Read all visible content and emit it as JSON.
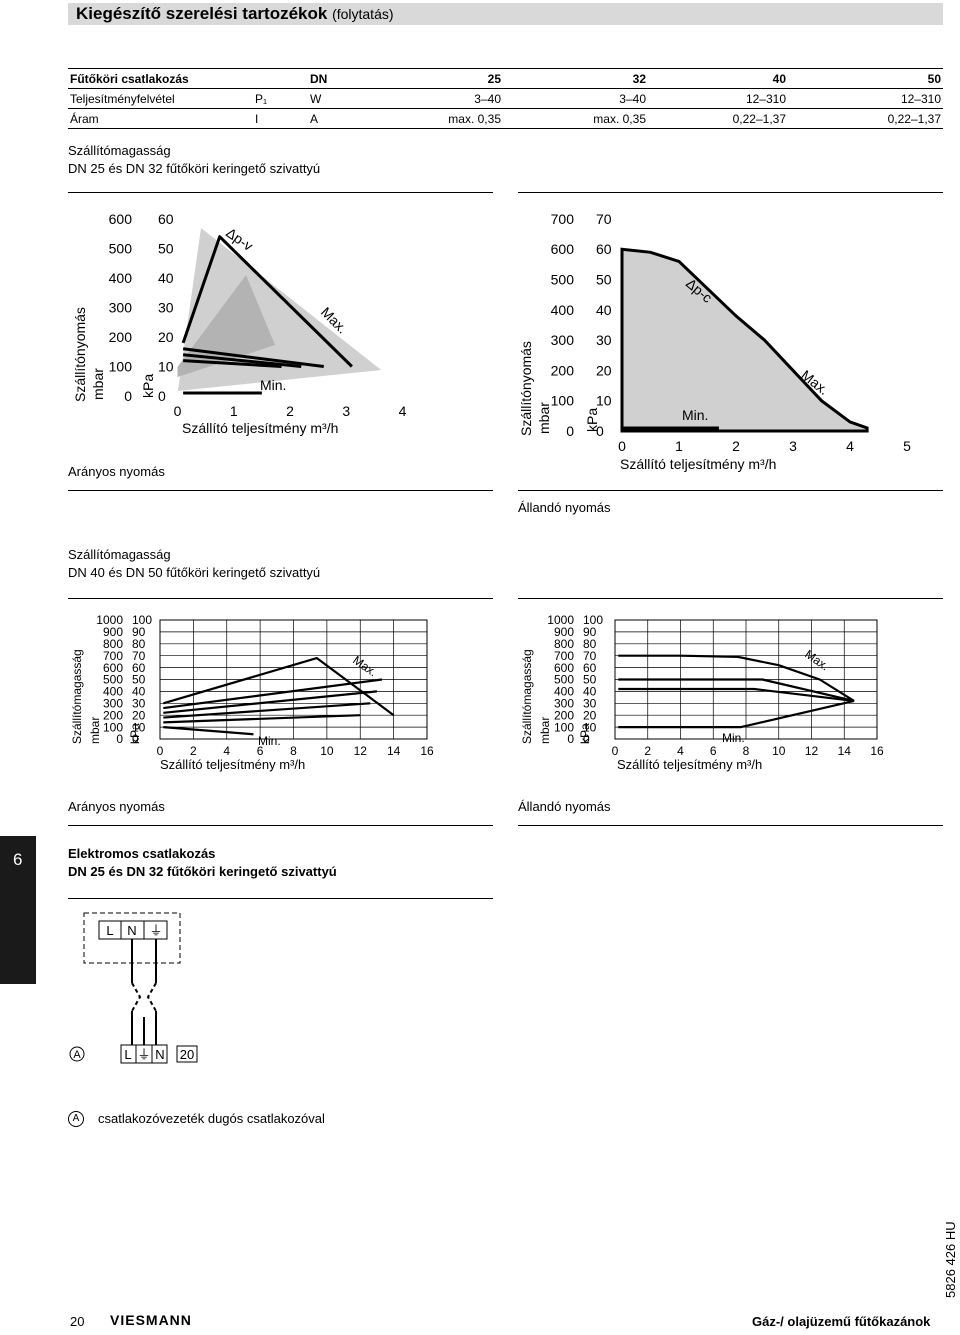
{
  "header": {
    "title": "Kiegészítő szerelési tartozékok",
    "suffix": "(folytatás)"
  },
  "spec_table": {
    "rows": [
      [
        "Fűtőköri csatlakozás",
        "",
        "DN",
        "25",
        "32",
        "40",
        "50"
      ],
      [
        "Teljesítményfelvétel",
        "P₁",
        "W",
        "3–40",
        "3–40",
        "12–310",
        "12–310"
      ],
      [
        "Áram",
        "I",
        "A",
        "max. 0,35",
        "max. 0,35",
        "0,22–1,37",
        "0,22–1,37"
      ]
    ]
  },
  "section1": {
    "title": "Szállítómagasság",
    "subtitle": "DN 25 és DN 32 fűtőköri keringető szivattyú"
  },
  "section2": {
    "title": "Szállítómagasság",
    "subtitle": "DN 40 és DN 50 fűtőköri keringető szivattyú"
  },
  "section3": {
    "title": "Elektromos csatlakozás",
    "subtitle": "DN 25 és DN 32 fűtőköri keringető szivattyú"
  },
  "chart_data": [
    {
      "type": "line",
      "ylabel": "Szállítónyomás",
      "yunit_left": "mbar",
      "yunit_right": "kPa",
      "xlabel": "Szállító teljesítmény m³/h",
      "yticks_mbar": [
        "600",
        "500",
        "400",
        "300",
        "200",
        "100",
        "0"
      ],
      "yticks_kpa": [
        "60",
        "50",
        "40",
        "30",
        "20",
        "10",
        "0"
      ],
      "xticks": [
        "0",
        "1",
        "2",
        "3",
        "4"
      ],
      "xlim": [
        0,
        4
      ],
      "ylim": [
        0,
        600
      ],
      "curve_label": "Δp-v",
      "max_label": "Max.",
      "min_label": "Min.",
      "caption": "Arányos nyomás",
      "series": [
        {
          "name": "Max.",
          "x": [
            0.1,
            0.75,
            3.1
          ],
          "y": [
            180,
            540,
            100
          ]
        },
        {
          "name": "",
          "x": [
            0.1,
            2.6
          ],
          "y": [
            160,
            100
          ]
        },
        {
          "name": "",
          "x": [
            0.1,
            2.2
          ],
          "y": [
            140,
            100
          ]
        },
        {
          "name": "",
          "x": [
            0.1,
            1.85
          ],
          "y": [
            120,
            100
          ]
        },
        {
          "name": "Min.",
          "x": [
            0.1,
            1.5
          ],
          "y": [
            10,
            10
          ]
        }
      ]
    },
    {
      "type": "area",
      "ylabel": "Szállítónyomás",
      "yunit_left": "mbar",
      "yunit_right": "kPa",
      "xlabel": "Szállító teljesítmény m³/h",
      "yticks_mbar": [
        "700",
        "600",
        "500",
        "400",
        "300",
        "200",
        "100",
        "0"
      ],
      "yticks_kpa": [
        "70",
        "60",
        "50",
        "40",
        "30",
        "20",
        "10",
        "0"
      ],
      "xticks": [
        "0",
        "1",
        "2",
        "3",
        "4",
        "5"
      ],
      "xlim": [
        0,
        5
      ],
      "ylim": [
        0,
        700
      ],
      "curve_label": "Δp-c",
      "max_label": "Max.",
      "min_label": "Min.",
      "caption": "Állandó nyomás",
      "series": [
        {
          "name": "Max.",
          "x": [
            0,
            0.5,
            1.0,
            1.5,
            2.0,
            2.5,
            3.0,
            3.5,
            4.0,
            4.3
          ],
          "y": [
            600,
            590,
            560,
            470,
            380,
            300,
            200,
            100,
            30,
            10
          ]
        },
        {
          "name": "Min.",
          "x": [
            0,
            1.7
          ],
          "y": [
            10,
            10
          ]
        }
      ]
    },
    {
      "type": "line",
      "ylabel": "Szállítómagasság",
      "yunit_left": "mbar",
      "yunit_right": "kPa",
      "xlabel": "Szállító teljesítmény m³/h",
      "yticks_mbar": [
        "1000",
        "900",
        "800",
        "700",
        "600",
        "500",
        "400",
        "300",
        "200",
        "100",
        "0"
      ],
      "yticks_kpa": [
        "100",
        "90",
        "80",
        "70",
        "60",
        "50",
        "40",
        "30",
        "20",
        "10",
        "0"
      ],
      "xticks": [
        "0",
        "2",
        "4",
        "6",
        "8",
        "10",
        "12",
        "14",
        "16"
      ],
      "xlim": [
        0,
        16
      ],
      "ylim": [
        0,
        1000
      ],
      "max_label": "Max.",
      "min_label": "Min.",
      "caption": "Arányos nyomás",
      "series": [
        {
          "name": "Max.",
          "x": [
            0.2,
            9.4,
            14.0
          ],
          "y": [
            300,
            680,
            200
          ]
        },
        {
          "name": "",
          "x": [
            0.2,
            13.3
          ],
          "y": [
            260,
            500
          ]
        },
        {
          "name": "",
          "x": [
            0.2,
            13.0
          ],
          "y": [
            220,
            400
          ]
        },
        {
          "name": "",
          "x": [
            0.2,
            12.6
          ],
          "y": [
            180,
            300
          ]
        },
        {
          "name": "",
          "x": [
            0.2,
            12.0
          ],
          "y": [
            140,
            200
          ]
        },
        {
          "name": "Min.",
          "x": [
            0.2,
            5.6
          ],
          "y": [
            100,
            40
          ]
        }
      ]
    },
    {
      "type": "line",
      "ylabel": "Szállítómagasság",
      "yunit_left": "mbar",
      "yunit_right": "kPa",
      "xlabel": "Szállító teljesítmény m³/h",
      "yticks_mbar": [
        "1000",
        "900",
        "800",
        "700",
        "600",
        "500",
        "400",
        "300",
        "200",
        "100",
        "0"
      ],
      "yticks_kpa": [
        "100",
        "90",
        "80",
        "70",
        "60",
        "50",
        "40",
        "30",
        "20",
        "10",
        "0"
      ],
      "xticks": [
        "0",
        "2",
        "4",
        "6",
        "8",
        "10",
        "12",
        "14",
        "16"
      ],
      "xlim": [
        0,
        16
      ],
      "ylim": [
        0,
        1000
      ],
      "max_label": "Max.",
      "min_label": "Min.",
      "caption": "Állandó nyomás",
      "series": [
        {
          "name": "Max.",
          "x": [
            0.2,
            4.0,
            7.5,
            10.0,
            12.5,
            14.6
          ],
          "y": [
            700,
            700,
            690,
            620,
            500,
            320
          ]
        },
        {
          "name": "",
          "x": [
            0.2,
            9.0,
            14.6
          ],
          "y": [
            500,
            500,
            320
          ]
        },
        {
          "name": "",
          "x": [
            0.2,
            8.5,
            14.6
          ],
          "y": [
            420,
            420,
            320
          ]
        },
        {
          "name": "Min.",
          "x": [
            0.2,
            7.7,
            14.6
          ],
          "y": [
            100,
            100,
            320
          ]
        }
      ]
    }
  ],
  "wiring": {
    "top_terminals": [
      "L",
      "N",
      "⏚"
    ],
    "bottom_terminals": [
      "L",
      "⏚",
      "N"
    ],
    "label_a": "A",
    "box_label": "20",
    "legend_a": "A",
    "legend_text": "csatlakozóvezeték dugós csatlakozóval"
  },
  "side_tab": "6",
  "footer": {
    "page": "20",
    "brand": "VIESMANN",
    "doc_title": "Gáz-/ olajüzemű fűtőkazánok",
    "doc_code": "5826 426 HU"
  }
}
